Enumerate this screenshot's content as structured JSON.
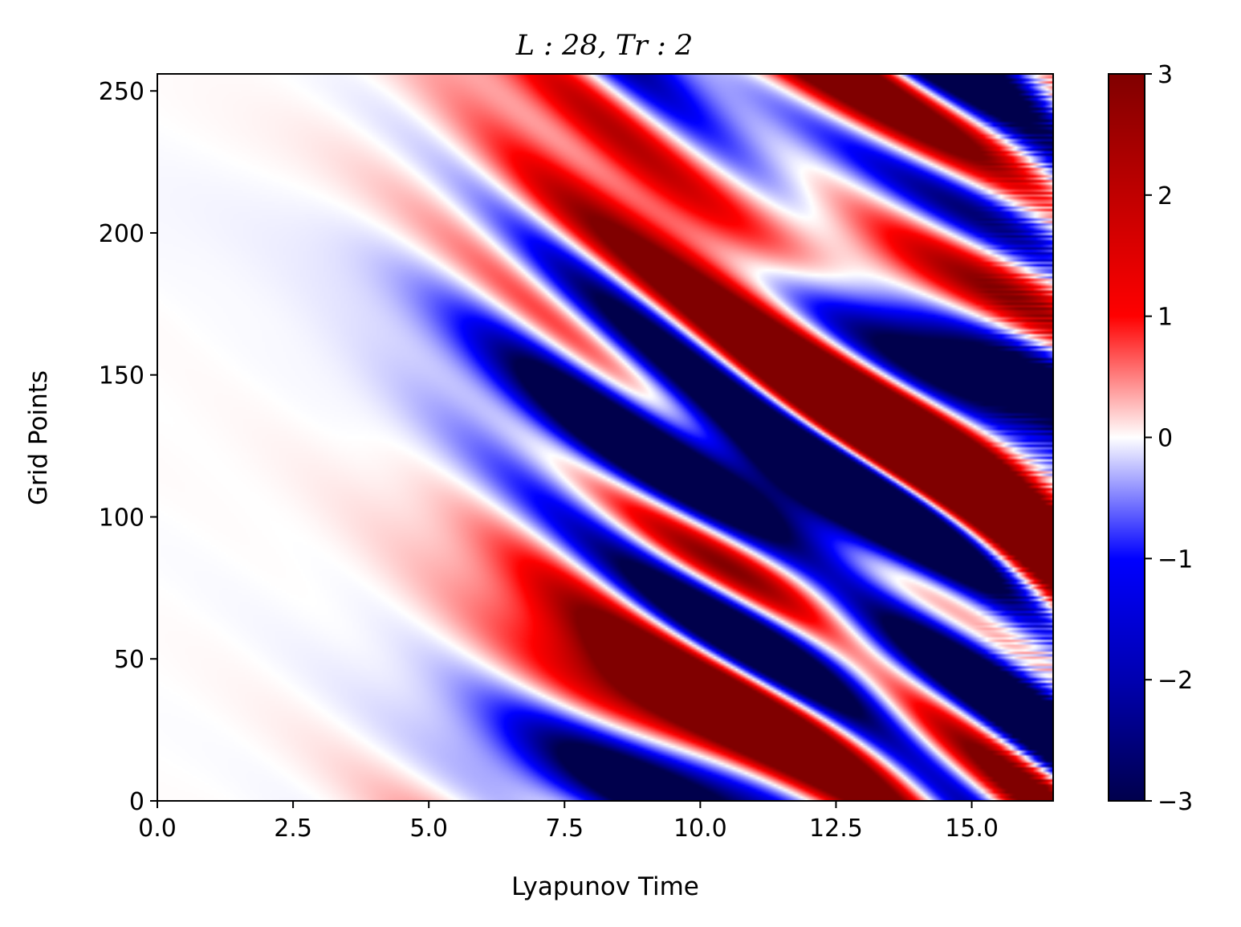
{
  "chart_data": {
    "type": "heatmap",
    "title": "L : 28, Tr : 2",
    "xlabel": "Lyapunov Time",
    "ylabel": "Grid Points",
    "xlim": [
      0,
      16.5
    ],
    "ylim": [
      0,
      256
    ],
    "xticks": [
      {
        "value": 0,
        "label": "0.0"
      },
      {
        "value": 2.5,
        "label": "2.5"
      },
      {
        "value": 5,
        "label": "5.0"
      },
      {
        "value": 7.5,
        "label": "7.5"
      },
      {
        "value": 10,
        "label": "10.0"
      },
      {
        "value": 12.5,
        "label": "12.5"
      },
      {
        "value": 15,
        "label": "15.0"
      }
    ],
    "yticks": [
      {
        "value": 0,
        "label": "0"
      },
      {
        "value": 50,
        "label": "50"
      },
      {
        "value": 100,
        "label": "100"
      },
      {
        "value": 150,
        "label": "150"
      },
      {
        "value": 200,
        "label": "200"
      },
      {
        "value": 250,
        "label": "250"
      }
    ],
    "colorbar": {
      "colormap": "seismic",
      "range": [
        -3,
        3
      ],
      "ticks": [
        {
          "value": 3,
          "label": "3"
        },
        {
          "value": 2,
          "label": "2"
        },
        {
          "value": 1,
          "label": "1"
        },
        {
          "value": 0,
          "label": "0"
        },
        {
          "value": -1,
          "label": "−1"
        },
        {
          "value": -2,
          "label": "−2"
        },
        {
          "value": -3,
          "label": "−3"
        }
      ]
    },
    "grid": false,
    "colors": {
      "low": "#00004c",
      "mid": "#ffffff",
      "high": "#800000"
    }
  }
}
